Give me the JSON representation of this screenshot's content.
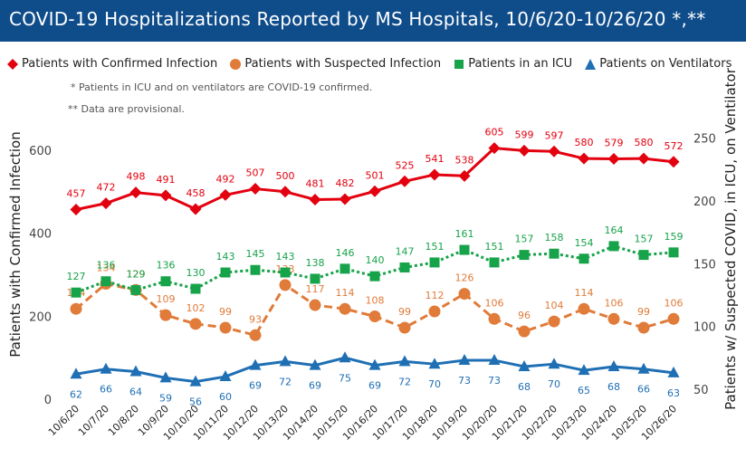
{
  "title": "COVID-19 Hospitalizations Reported by MS Hospitals, 10/6/20-10/26/20 *,**",
  "notes": [
    "* Patients in ICU and on ventilators are COVID-19 confirmed.",
    "** Data are provisional."
  ],
  "colors": {
    "confirmed": "#e3000f",
    "suspected": "#e07b39",
    "icu": "#17a34a",
    "ventilator": "#1f6fb4",
    "title_bg": "#0f4c8a"
  },
  "chart_data": {
    "type": "line",
    "x": [
      "10/6/20",
      "10/7/20",
      "10/8/20",
      "10/9/20",
      "10/10/20",
      "10/11/20",
      "10/12/20",
      "10/13/20",
      "10/14/20",
      "10/15/20",
      "10/16/20",
      "10/17/20",
      "10/18/20",
      "10/19/20",
      "10/20/20",
      "10/21/20",
      "10/22/20",
      "10/23/20",
      "10/24/20",
      "10/25/20",
      "10/26/20"
    ],
    "ylabel_left": "Patients with Confirmed Infection",
    "ylabel_right": "Patients w/ Suspected COVID, in ICU, on Ventilator",
    "ylim_left": [
      0,
      650
    ],
    "ylim_right": [
      42,
      257
    ],
    "yticks_left": [
      0,
      200,
      400,
      600
    ],
    "yticks_right": [
      50,
      100,
      150,
      200,
      250
    ],
    "grid": false,
    "legend_position": "top-left",
    "series": [
      {
        "name": "Patients with Confirmed Infection",
        "axis": "left",
        "marker": "diamond",
        "style": "solid",
        "color_key": "confirmed",
        "values": [
          457,
          472,
          498,
          491,
          458,
          492,
          507,
          500,
          481,
          482,
          501,
          525,
          541,
          538,
          605,
          599,
          597,
          580,
          579,
          580,
          572
        ]
      },
      {
        "name": "Patients with Suspected Infection",
        "axis": "right",
        "marker": "circle",
        "style": "dashed",
        "color_key": "suspected",
        "values": [
          114,
          134,
          129,
          109,
          102,
          99,
          93,
          133,
          117,
          114,
          108,
          99,
          112,
          126,
          106,
          96,
          104,
          114,
          106,
          99,
          106
        ]
      },
      {
        "name": "Patients in an ICU",
        "axis": "right",
        "marker": "square",
        "style": "dotted",
        "color_key": "icu",
        "values": [
          127,
          136,
          129,
          136,
          130,
          143,
          145,
          143,
          138,
          146,
          140,
          147,
          151,
          161,
          151,
          157,
          158,
          154,
          164,
          157,
          159
        ]
      },
      {
        "name": "Patients on Ventilators",
        "axis": "right",
        "marker": "triangle",
        "style": "solid",
        "color_key": "ventilator",
        "values": [
          62,
          66,
          64,
          59,
          56,
          60,
          69,
          72,
          69,
          75,
          69,
          72,
          70,
          73,
          73,
          68,
          70,
          65,
          68,
          66,
          63
        ]
      }
    ]
  }
}
